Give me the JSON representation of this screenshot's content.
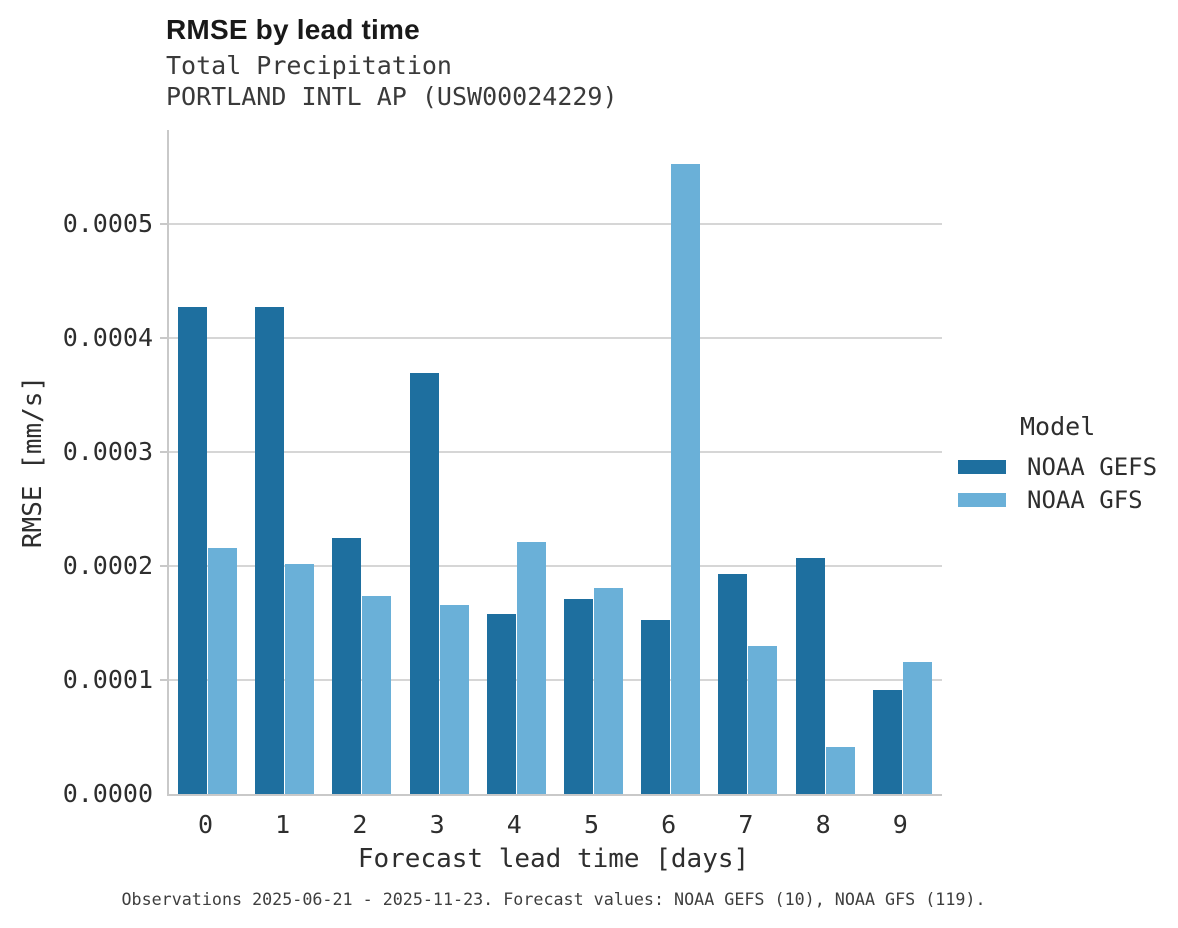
{
  "header": {
    "title": "RMSE by lead time",
    "subtitle_line1": "Total Precipitation",
    "subtitle_line2": "PORTLAND INTL AP (USW00024229)"
  },
  "chart_data": {
    "type": "bar",
    "title": "RMSE by lead time",
    "subtitle": [
      "Total Precipitation",
      "PORTLAND INTL AP (USW00024229)"
    ],
    "categories": [
      "0",
      "1",
      "2",
      "3",
      "4",
      "5",
      "6",
      "7",
      "8",
      "9"
    ],
    "series": [
      {
        "name": "NOAA GEFS",
        "color": "#1e6f9f",
        "values": [
          0.000427,
          0.000427,
          0.000225,
          0.000369,
          0.000158,
          0.000171,
          0.000153,
          0.000193,
          0.000207,
          9.1e-05
        ]
      },
      {
        "name": "NOAA GFS",
        "color": "#6ab0d8",
        "values": [
          0.000216,
          0.000202,
          0.000174,
          0.000166,
          0.000221,
          0.000181,
          0.000553,
          0.00013,
          4.1e-05,
          0.000116
        ]
      }
    ],
    "xlabel": "Forecast lead time [days]",
    "ylabel": "RMSE [mm/s]",
    "ylim": [
      0,
      0.0005825
    ],
    "yticks": [
      {
        "label": "0.0000",
        "value": 0.0
      },
      {
        "label": "0.0001",
        "value": 0.0001
      },
      {
        "label": "0.0002",
        "value": 0.0002
      },
      {
        "label": "0.0003",
        "value": 0.0003
      },
      {
        "label": "0.0004",
        "value": 0.0004
      },
      {
        "label": "0.0005",
        "value": 0.0005
      }
    ],
    "grid": true,
    "legend_title": "Model",
    "legend_position": "right"
  },
  "caption": "Observations 2025-06-21 - 2025-11-23. Forecast values: NOAA GEFS (10), NOAA GFS (119)."
}
